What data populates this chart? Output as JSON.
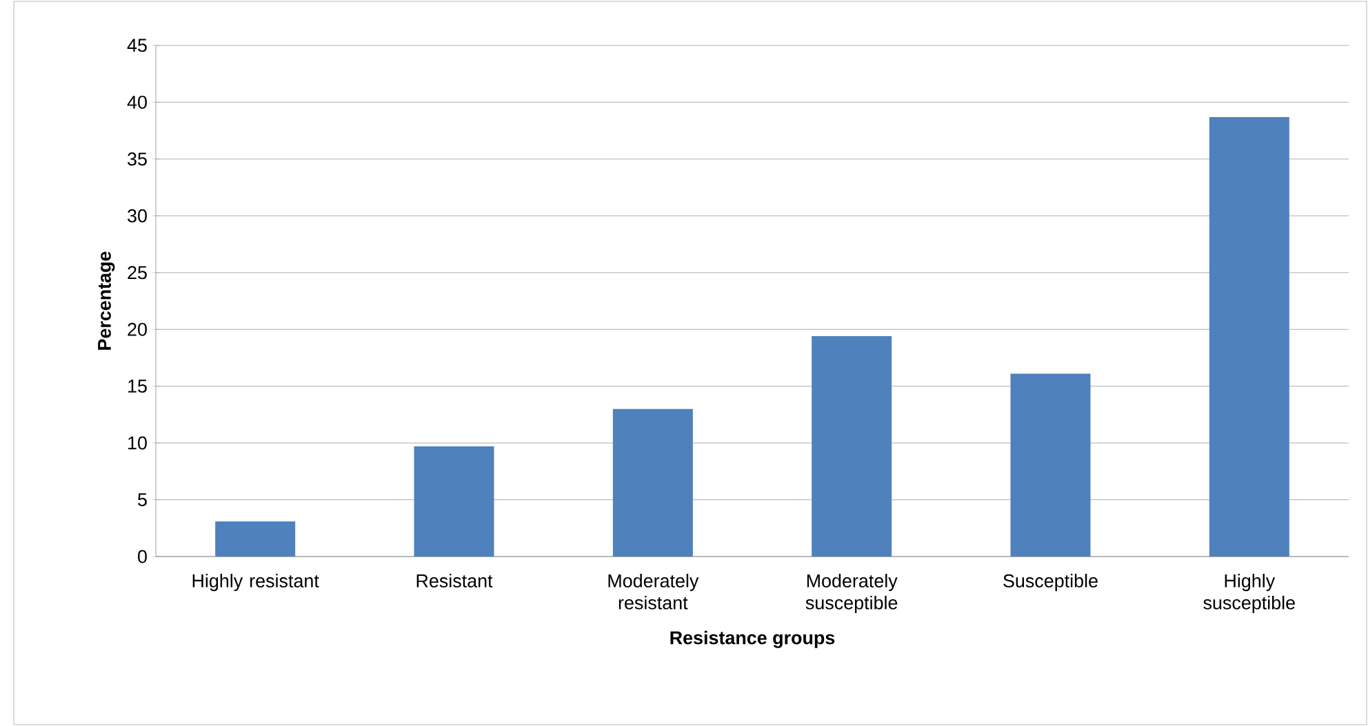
{
  "chart_data": {
    "type": "bar",
    "xlabel": "Resistance groups",
    "ylabel": "Percentage",
    "categories": [
      "Highly resistant",
      "Resistant",
      "Moderately resistant",
      "Moderately susceptible",
      "Susceptible",
      "Highly susceptible"
    ],
    "values": [
      3.1,
      9.7,
      13.0,
      19.4,
      16.1,
      38.7
    ],
    "color": "#4f81bd",
    "ylim": [
      0,
      45
    ],
    "yticks": [
      0,
      5,
      10,
      15,
      20,
      25,
      30,
      35,
      40,
      45
    ],
    "grid": "y"
  }
}
